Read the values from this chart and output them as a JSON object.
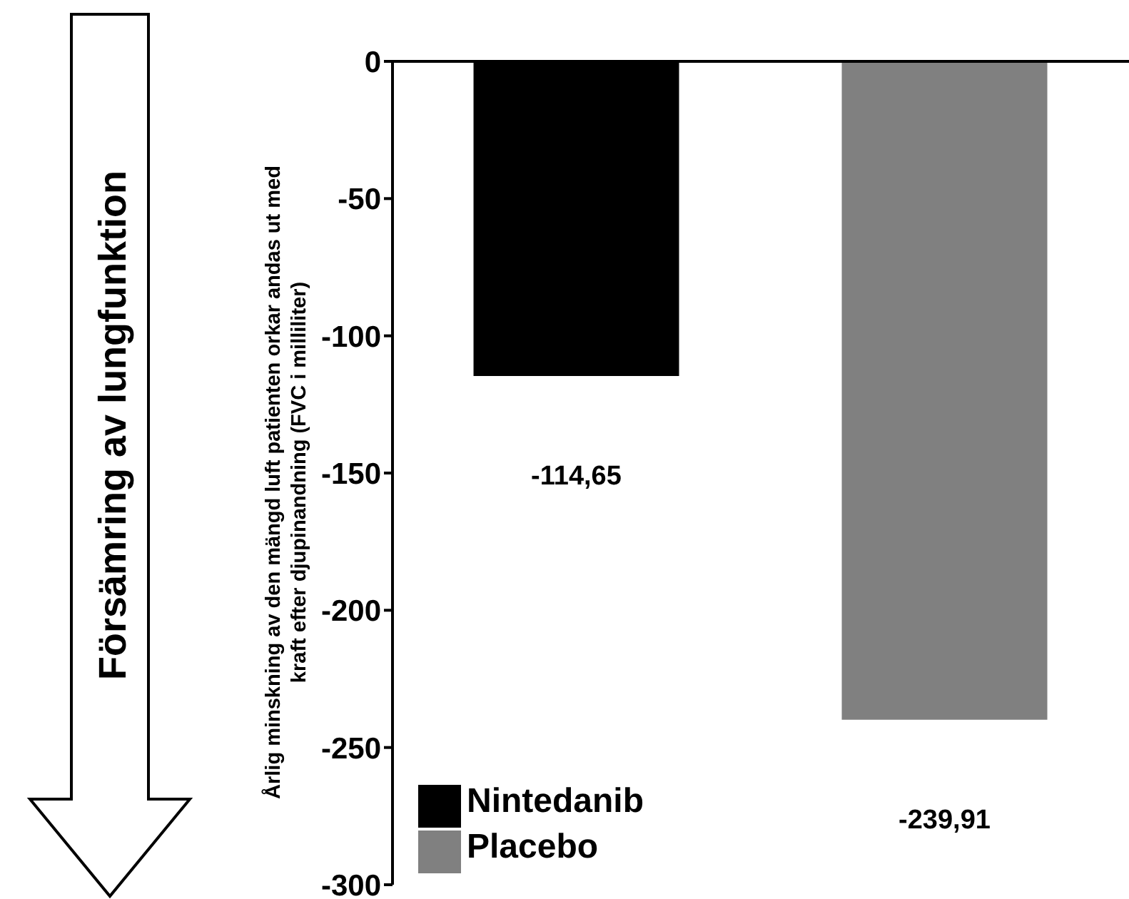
{
  "chart_data": {
    "type": "bar",
    "ylabel": "Årlig minskning av den mängd luft patienten orkar andas ut med kraft efter djupinandning (FVC i milliliter)",
    "categories": [
      null,
      null
    ],
    "series": [
      {
        "name": "Nintedanib",
        "color": "#000000",
        "values": [
          -114.65,
          null
        ],
        "value_labels": [
          "-114,65",
          null
        ]
      },
      {
        "name": "Placebo",
        "color": "#808080",
        "values": [
          null,
          -239.91
        ],
        "value_labels": [
          null,
          "-239,91"
        ]
      }
    ],
    "ylim": [
      -300,
      0
    ],
    "yticks": [
      0,
      -50,
      -100,
      -150,
      -200,
      -250,
      -300
    ],
    "grid": false,
    "legend": "bottom left",
    "tick_labels": "y",
    "annotations": [
      "Försämring av lungfunktion"
    ]
  }
}
